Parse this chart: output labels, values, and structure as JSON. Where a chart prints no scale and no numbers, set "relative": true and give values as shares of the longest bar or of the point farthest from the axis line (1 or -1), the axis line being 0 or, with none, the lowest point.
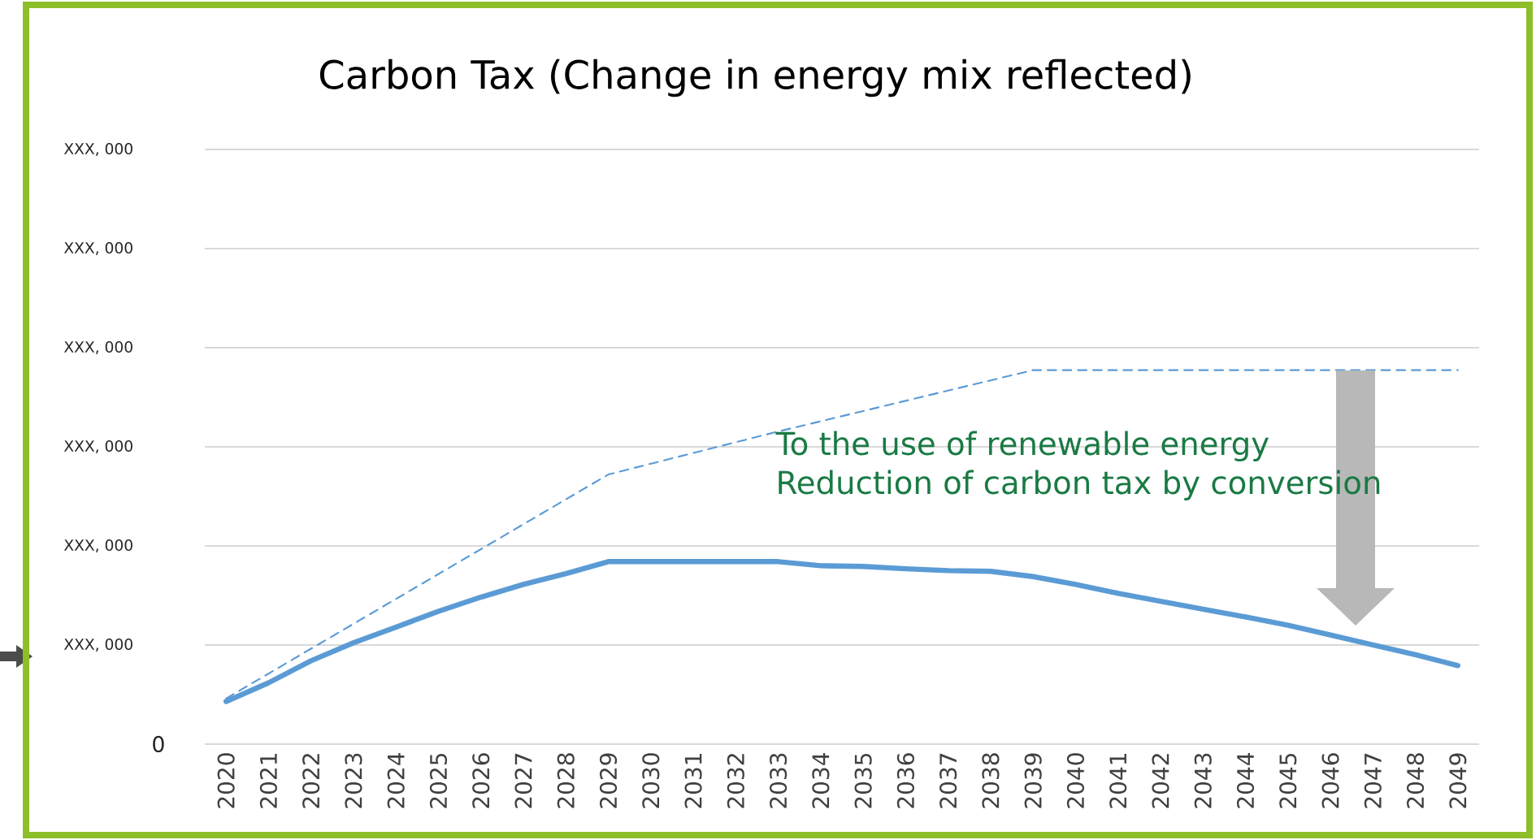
{
  "chart_data": {
    "type": "line",
    "title": "Carbon Tax (Change in energy mix reflected)",
    "relative": true,
    "x": [
      2020,
      2021,
      2022,
      2023,
      2024,
      2025,
      2026,
      2027,
      2028,
      2029,
      2030,
      2031,
      2032,
      2033,
      2034,
      2035,
      2036,
      2037,
      2038,
      2039,
      2040,
      2041,
      2042,
      2043,
      2044,
      2045,
      2046,
      2047,
      2048,
      2049
    ],
    "xlim": [
      2019.5,
      2049.5
    ],
    "xticks": [
      2020,
      2021,
      2022,
      2023,
      2024,
      2025,
      2026,
      2027,
      2028,
      2029,
      2030,
      2031,
      2032,
      2033,
      2034,
      2035,
      2036,
      2037,
      2038,
      2039,
      2040,
      2041,
      2042,
      2043,
      2044,
      2045,
      2046,
      2047,
      2048,
      2049
    ],
    "grid": "y",
    "annotations": [
      "To the use of renewable energy\nReduction of carbon tax by conversion",
      "0",
      "XXX, 000",
      "XXX, 000",
      "XXX, 000",
      "XXX, 000",
      "XXX, 000",
      "XXX, 000"
    ],
    "series": [
      {
        "color": "#5b9bd5",
        "line_style": "solid",
        "values": [
          0.114,
          0.164,
          0.223,
          0.271,
          0.313,
          0.355,
          0.393,
          0.427,
          0.456,
          0.488,
          0.488,
          0.488,
          0.488,
          0.488,
          0.477,
          0.475,
          0.469,
          0.464,
          0.462,
          0.448,
          0.427,
          0.403,
          0.382,
          0.361,
          0.34,
          0.318,
          0.292,
          0.265,
          0.239,
          0.21
        ]
      },
      {
        "color": "#5b9bd5",
        "line_style": "dashed",
        "x": [
          2020,
          2029,
          2033,
          2039,
          2049
        ],
        "values": [
          0.122,
          0.721,
          0.836,
          1,
          1
        ]
      }
    ]
  }
}
